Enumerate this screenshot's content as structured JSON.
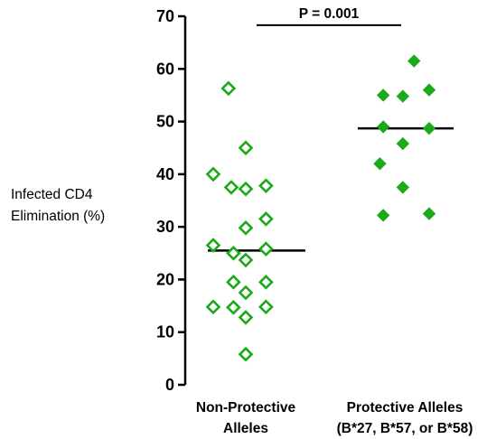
{
  "chart_data": {
    "type": "scatter",
    "ylabel_lines": [
      "Infected CD4",
      "Elimination (%)"
    ],
    "ylim": [
      0,
      70
    ],
    "yticks": [
      0,
      10,
      20,
      30,
      40,
      50,
      60,
      70
    ],
    "categories": [
      {
        "lines": [
          "Non-Protective",
          "Alleles"
        ]
      },
      {
        "lines": [
          "Protective Alleles",
          "(B*27, B*57, or B*58)"
        ]
      }
    ],
    "series": [
      {
        "category": 0,
        "marker": "open-diamond",
        "color": "#1aaa1a",
        "median": 25.5,
        "points": [
          {
            "x": 0.26,
            "y": 56.3
          },
          {
            "x": 0.5,
            "y": 45.0
          },
          {
            "x": 0.05,
            "y": 40.0
          },
          {
            "x": 0.3,
            "y": 37.5
          },
          {
            "x": 0.5,
            "y": 37.2
          },
          {
            "x": 0.78,
            "y": 37.8
          },
          {
            "x": 0.78,
            "y": 31.5
          },
          {
            "x": 0.5,
            "y": 29.8
          },
          {
            "x": 0.05,
            "y": 26.5
          },
          {
            "x": 0.33,
            "y": 25.0
          },
          {
            "x": 0.78,
            "y": 25.8
          },
          {
            "x": 0.5,
            "y": 23.7
          },
          {
            "x": 0.33,
            "y": 19.5
          },
          {
            "x": 0.78,
            "y": 19.5
          },
          {
            "x": 0.5,
            "y": 17.5
          },
          {
            "x": 0.05,
            "y": 14.8
          },
          {
            "x": 0.33,
            "y": 14.7
          },
          {
            "x": 0.78,
            "y": 14.8
          },
          {
            "x": 0.5,
            "y": 12.8
          },
          {
            "x": 0.5,
            "y": 5.8
          }
        ]
      },
      {
        "category": 1,
        "marker": "filled-diamond",
        "color": "#1aaa1a",
        "median": 48.7,
        "points": [
          {
            "x": 0.73,
            "y": 61.5
          },
          {
            "x": 0.18,
            "y": 55.0
          },
          {
            "x": 0.53,
            "y": 54.8
          },
          {
            "x": 1.0,
            "y": 56.0
          },
          {
            "x": 0.18,
            "y": 49.0
          },
          {
            "x": 1.0,
            "y": 48.7
          },
          {
            "x": 0.53,
            "y": 45.8
          },
          {
            "x": 0.12,
            "y": 42.0
          },
          {
            "x": 0.53,
            "y": 37.5
          },
          {
            "x": 0.18,
            "y": 32.2
          },
          {
            "x": 1.0,
            "y": 32.5
          }
        ]
      }
    ],
    "annotation": {
      "text": "P = 0.001",
      "from_category": 0,
      "to_category": 1,
      "y_level": 68.3
    }
  }
}
